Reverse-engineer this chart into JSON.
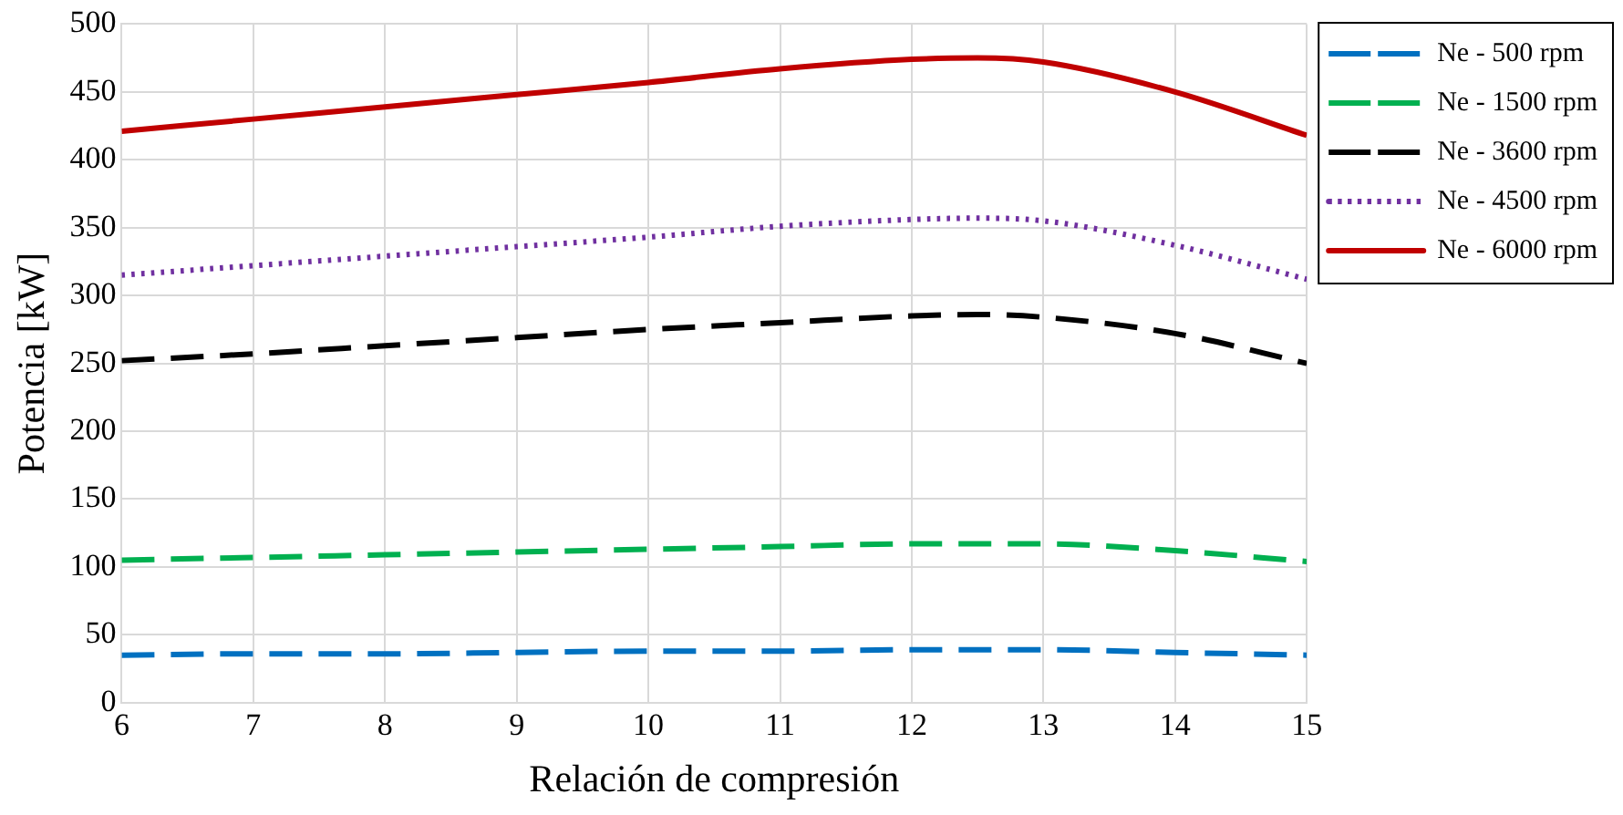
{
  "chart_data": {
    "type": "line",
    "xlabel": "Relación de compresión",
    "ylabel": "Potencia [kW]",
    "x": [
      6,
      7,
      8,
      9,
      10,
      11,
      12,
      12.5,
      13,
      14,
      15
    ],
    "xlim": [
      6,
      15
    ],
    "xticks": [
      6,
      7,
      8,
      9,
      10,
      11,
      12,
      13,
      14,
      15
    ],
    "ylim": [
      0,
      500
    ],
    "yticks": [
      0,
      50,
      100,
      150,
      200,
      250,
      300,
      350,
      400,
      450,
      500
    ],
    "grid": true,
    "legend": "right",
    "marker": "none",
    "series": [
      {
        "name": "Ne - 500 rpm",
        "color": "#0070c0",
        "line_style": "dashed",
        "values": [
          35,
          36,
          36,
          37,
          38,
          38,
          39,
          39,
          39,
          37,
          35
        ]
      },
      {
        "name": "Ne - 1500 rpm",
        "color": "#00b050",
        "line_style": "dashed",
        "values": [
          105,
          107,
          109,
          111,
          113,
          115,
          117,
          117,
          117,
          112,
          104
        ]
      },
      {
        "name": "Ne - 3600 rpm",
        "color": "#000000",
        "line_style": "dashed",
        "values": [
          252,
          257,
          263,
          269,
          275,
          280,
          285,
          286,
          284,
          272,
          250
        ]
      },
      {
        "name": "Ne - 4500 rpm",
        "color": "#7030a0",
        "line_style": "dotted",
        "values": [
          315,
          322,
          329,
          336,
          343,
          351,
          356,
          357,
          355,
          337,
          312
        ]
      },
      {
        "name": "Ne - 6000 rpm",
        "color": "#c00000",
        "line_style": "solid",
        "values": [
          421,
          430,
          439,
          448,
          457,
          467,
          474,
          475,
          472,
          450,
          418
        ]
      }
    ]
  }
}
